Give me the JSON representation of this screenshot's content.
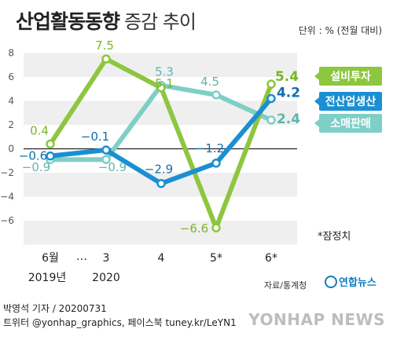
{
  "header": {
    "title": "산업활동동향",
    "subtitle": "증감 추이",
    "unit": "단위 : % (전월 대비)"
  },
  "note": "*잠정치",
  "source": "자료/통계청",
  "credit": {
    "line1": "박영석 기자 / 20200731",
    "line2": "트위터 @yonhap_graphics, 페이스북 tuney.kr/LeYN1"
  },
  "logo": "연합뉴스",
  "watermark": "YONHAP NEWS",
  "x_break_mark": "…",
  "colors": {
    "capex": "#8dc63f",
    "industrial": "#1b8fd2",
    "retail": "#7ecfc6",
    "band": "#efefef"
  },
  "chart_data": {
    "type": "line",
    "categories": [
      "6월",
      "3",
      "4",
      "5*",
      "6*"
    ],
    "category_sublabels": [
      "2019년",
      "2020",
      "",
      "",
      ""
    ],
    "ylim": [
      -8,
      8
    ],
    "yticks": [
      -6,
      -4,
      -2,
      0,
      2,
      4,
      6,
      8
    ],
    "series": [
      {
        "name": "설비투자",
        "values": [
          0.4,
          7.5,
          5.1,
          -6.6,
          5.4
        ],
        "labels": [
          "0.4",
          "7.5",
          "5.1",
          "-6.6",
          "5.4"
        ]
      },
      {
        "name": "전산업생산",
        "values": [
          -0.6,
          -0.1,
          -2.9,
          -1.2,
          4.2
        ],
        "labels": [
          "-0.6",
          "-0.1",
          "-2.9",
          "-1.2",
          "4.2"
        ]
      },
      {
        "name": "소매판매",
        "values": [
          -0.9,
          -0.9,
          5.3,
          4.5,
          2.4
        ],
        "labels": [
          "-0.9",
          "-0.9",
          "5.3",
          "4.5",
          "2.4"
        ]
      }
    ]
  }
}
